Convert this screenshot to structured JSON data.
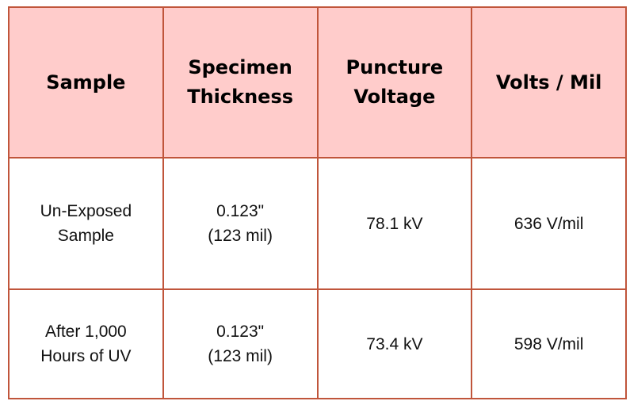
{
  "table": {
    "headers": [
      {
        "lines": [
          "Sample"
        ]
      },
      {
        "lines": [
          "Specimen",
          "Thickness"
        ]
      },
      {
        "lines": [
          "Puncture",
          "Voltage"
        ]
      },
      {
        "lines": [
          "Volts / Mil"
        ]
      }
    ],
    "rows": [
      {
        "sample": [
          "Un-Exposed",
          "Sample"
        ],
        "thickness": [
          "0.123\"",
          "(123 mil)"
        ],
        "voltage": "78.1 kV",
        "volts_per_mil": "636 V/mil"
      },
      {
        "sample": [
          "After 1,000",
          "Hours of UV"
        ],
        "thickness": [
          "0.123\"",
          "(123 mil)"
        ],
        "voltage": "73.4 kV",
        "volts_per_mil": "598 V/mil"
      }
    ]
  },
  "colors": {
    "header_background": "#ffcccb",
    "border": "#c0553b"
  }
}
